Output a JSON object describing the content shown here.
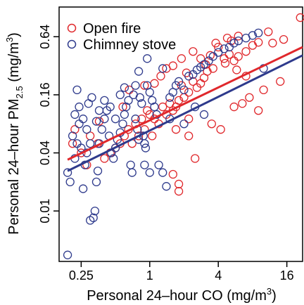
{
  "chart_data": {
    "type": "scatter",
    "xscale": "log2",
    "yscale": "log2",
    "xlabel": "Personal 24–hour CO (mg/m3)",
    "ylabel": "Personal 24–hour PM2.5 (mg/m3)",
    "xlim": [
      0.16,
      22
    ],
    "ylim": [
      0.003,
      1.3
    ],
    "xticks": [
      0.25,
      1,
      4,
      16
    ],
    "xtick_labels": [
      "0.25",
      "1",
      "4",
      "16"
    ],
    "yticks": [
      0.01,
      0.04,
      0.16,
      0.64
    ],
    "ytick_labels": [
      "0.01",
      "0.04",
      "0.16",
      "0.64"
    ],
    "legend": {
      "position": "top-left",
      "entries": [
        {
          "label": "Open fire",
          "color": "#e0282c",
          "marker": "open-circle"
        },
        {
          "label": "Chimney stove",
          "color": "#2e3a8c",
          "marker": "open-circle"
        }
      ]
    },
    "series": [
      {
        "name": "Open fire",
        "color": "#e0282c",
        "trendline": [
          [
            0.19,
            0.034
          ],
          [
            22,
            0.5
          ]
        ],
        "points": [
          [
            21,
            1.01
          ],
          [
            11,
            0.72
          ],
          [
            14,
            0.22
          ],
          [
            8,
            0.52
          ],
          [
            7,
            0.45
          ],
          [
            6,
            0.4
          ],
          [
            5.5,
            0.36
          ],
          [
            5,
            0.42
          ],
          [
            4.5,
            0.38
          ],
          [
            4,
            0.5
          ],
          [
            3.6,
            0.3
          ],
          [
            3.2,
            0.28
          ],
          [
            3,
            0.24
          ],
          [
            2.8,
            0.21
          ],
          [
            2.6,
            0.19
          ],
          [
            2.4,
            0.22
          ],
          [
            2.2,
            0.17
          ],
          [
            2,
            0.15
          ],
          [
            1.9,
            0.2
          ],
          [
            1.8,
            0.14
          ],
          [
            1.7,
            0.12
          ],
          [
            1.6,
            0.11
          ],
          [
            1.5,
            0.13
          ],
          [
            1.4,
            0.1
          ],
          [
            1.3,
            0.12
          ],
          [
            1.2,
            0.08
          ],
          [
            1.1,
            0.09
          ],
          [
            1.0,
            0.1
          ],
          [
            0.95,
            0.11
          ],
          [
            0.9,
            0.07
          ],
          [
            0.85,
            0.09
          ],
          [
            0.8,
            0.06
          ],
          [
            0.75,
            0.08
          ],
          [
            0.7,
            0.05
          ],
          [
            0.65,
            0.07
          ],
          [
            0.6,
            0.06
          ],
          [
            0.55,
            0.05
          ],
          [
            0.5,
            0.045
          ],
          [
            0.45,
            0.04
          ],
          [
            0.4,
            0.035
          ],
          [
            0.35,
            0.05
          ],
          [
            0.3,
            0.06
          ],
          [
            0.28,
            0.03
          ],
          [
            0.25,
            0.04
          ],
          [
            0.22,
            0.07
          ],
          [
            0.21,
            0.05
          ],
          [
            1.8,
            0.016
          ],
          [
            1.8,
            0.019
          ],
          [
            1.6,
            0.024
          ],
          [
            2.2,
            0.06
          ],
          [
            2.5,
            0.035
          ],
          [
            3.5,
            0.08
          ],
          [
            4.2,
            0.07
          ],
          [
            5.5,
            0.12
          ],
          [
            6.5,
            0.13
          ],
          [
            7.5,
            0.15
          ],
          [
            9,
            0.11
          ],
          [
            10,
            0.18
          ],
          [
            3.8,
            0.55
          ],
          [
            4.8,
            0.62
          ],
          [
            5.2,
            0.58
          ],
          [
            2.4,
            0.45
          ],
          [
            2.8,
            0.38
          ],
          [
            1.6,
            0.32
          ],
          [
            1.4,
            0.3
          ],
          [
            1.9,
            0.38
          ],
          [
            6,
            0.65
          ],
          [
            9,
            0.56
          ],
          [
            12,
            0.55
          ],
          [
            15,
            0.6
          ],
          [
            0.36,
            0.085
          ],
          [
            0.58,
            0.12
          ],
          [
            0.66,
            0.18
          ],
          [
            0.9,
            0.2
          ],
          [
            1.1,
            0.21
          ],
          [
            1.25,
            0.25
          ],
          [
            2.1,
            0.27
          ],
          [
            3.1,
            0.33
          ],
          [
            3.4,
            0.41
          ],
          [
            4.6,
            0.34
          ],
          [
            5.8,
            0.29
          ],
          [
            7,
            0.25
          ],
          [
            2.2,
            0.09
          ],
          [
            1.7,
            0.07
          ],
          [
            1.05,
            0.06
          ]
        ]
      },
      {
        "name": "Chimney stove",
        "color": "#2e3a8c",
        "trendline": [
          [
            0.19,
            0.026
          ],
          [
            22,
            0.41
          ]
        ],
        "points": [
          [
            0.19,
            0.0035
          ],
          [
            0.19,
            0.025
          ],
          [
            0.2,
            0.02
          ],
          [
            0.21,
            0.06
          ],
          [
            0.22,
            0.1
          ],
          [
            0.23,
            0.18
          ],
          [
            0.24,
            0.08
          ],
          [
            0.25,
            0.045
          ],
          [
            0.26,
            0.017
          ],
          [
            0.27,
            0.03
          ],
          [
            0.28,
            0.04
          ],
          [
            0.29,
            0.13
          ],
          [
            0.3,
            0.008
          ],
          [
            0.32,
            0.0085
          ],
          [
            0.33,
            0.01
          ],
          [
            0.34,
            0.02
          ],
          [
            0.35,
            0.026
          ],
          [
            0.36,
            0.05
          ],
          [
            0.38,
            0.07
          ],
          [
            0.4,
            0.09
          ],
          [
            0.42,
            0.11
          ],
          [
            0.44,
            0.06
          ],
          [
            0.46,
            0.04
          ],
          [
            0.48,
            0.035
          ],
          [
            0.5,
            0.045
          ],
          [
            0.52,
            0.055
          ],
          [
            0.55,
            0.065
          ],
          [
            0.58,
            0.08
          ],
          [
            0.6,
            0.1
          ],
          [
            0.62,
            0.12
          ],
          [
            0.65,
            0.14
          ],
          [
            0.68,
            0.03
          ],
          [
            0.7,
            0.025
          ],
          [
            0.72,
            0.16
          ],
          [
            0.75,
            0.09
          ],
          [
            0.78,
            0.07
          ],
          [
            0.8,
            0.055
          ],
          [
            0.82,
            0.15
          ],
          [
            0.85,
            0.13
          ],
          [
            0.88,
            0.06
          ],
          [
            0.9,
            0.05
          ],
          [
            0.92,
            0.045
          ],
          [
            0.95,
            0.2
          ],
          [
            1.0,
            0.17
          ],
          [
            1.05,
            0.14
          ],
          [
            1.1,
            0.12
          ],
          [
            1.15,
            0.1
          ],
          [
            1.2,
            0.03
          ],
          [
            1.3,
            0.025
          ],
          [
            1.4,
            0.018
          ],
          [
            1.5,
            0.15
          ],
          [
            1.6,
            0.17
          ],
          [
            1.7,
            0.2
          ],
          [
            1.8,
            0.22
          ],
          [
            2.0,
            0.18
          ],
          [
            2.2,
            0.25
          ],
          [
            2.4,
            0.26
          ],
          [
            2.6,
            0.29
          ],
          [
            2.8,
            0.31
          ],
          [
            3.0,
            0.33
          ],
          [
            3.3,
            0.36
          ],
          [
            3.6,
            0.4
          ],
          [
            4.0,
            0.44
          ],
          [
            4.5,
            0.48
          ],
          [
            5.0,
            0.5
          ],
          [
            5.5,
            0.55
          ],
          [
            6.0,
            0.58
          ],
          [
            7.0,
            0.62
          ],
          [
            8.0,
            0.66
          ],
          [
            9.0,
            0.7
          ],
          [
            10.0,
            0.3
          ],
          [
            3.0,
            0.1
          ],
          [
            2.5,
            0.12
          ],
          [
            2.0,
            0.08
          ],
          [
            1.0,
            0.025
          ],
          [
            0.9,
            0.03
          ],
          [
            0.8,
            0.28
          ],
          [
            0.95,
            0.38
          ],
          [
            1.3,
            0.3
          ],
          [
            1.5,
            0.09
          ],
          [
            0.75,
            0.2
          ],
          [
            0.6,
            0.19
          ],
          [
            0.55,
            0.16
          ],
          [
            0.5,
            0.09
          ],
          [
            0.45,
            0.12
          ],
          [
            0.4,
            0.14
          ],
          [
            0.36,
            0.11
          ],
          [
            0.3,
            0.05
          ],
          [
            0.28,
            0.07
          ],
          [
            0.26,
            0.09
          ],
          [
            0.23,
            0.05
          ],
          [
            0.22,
            0.035
          ],
          [
            0.24,
            0.12
          ],
          [
            0.31,
            0.15
          ],
          [
            0.34,
            0.085
          ]
        ]
      }
    ]
  }
}
